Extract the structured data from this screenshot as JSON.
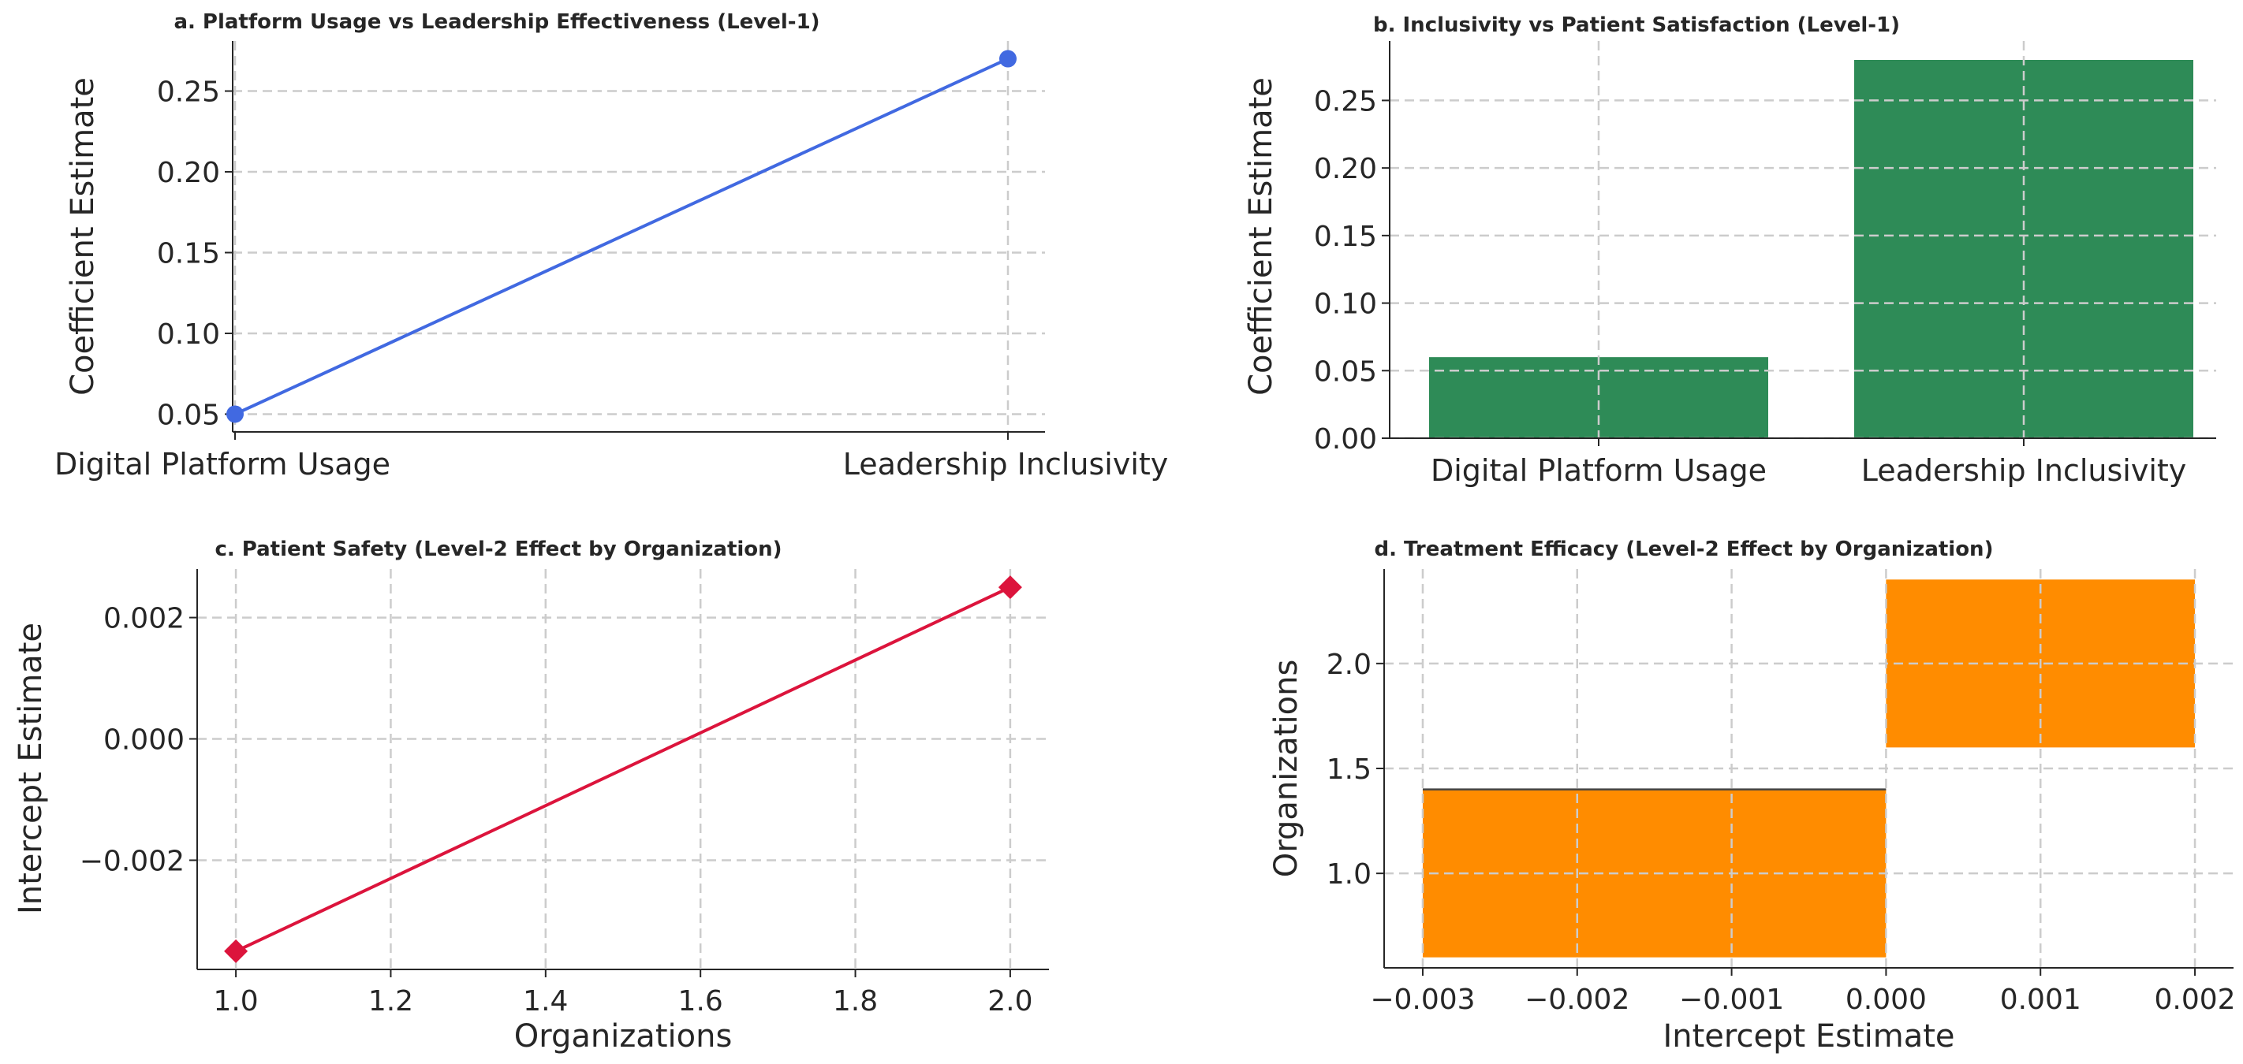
{
  "colors": {
    "line_a": "#4169E1",
    "bar_b": "#2E8B57",
    "line_c": "#DC143C",
    "bar_d": "#FF8C00",
    "grid": "#cccccc",
    "axis": "#262626"
  },
  "chart_data": [
    {
      "type": "line",
      "title": "a. Platform Usage vs Leadership Effectiveness (Level-1)",
      "xlabel": "",
      "ylabel": "Coefficient Estimate",
      "categories": [
        "Digital Platform Usage",
        "Leadership Inclusivity"
      ],
      "values": [
        0.05,
        0.27
      ],
      "ylim": [
        0.039,
        0.281
      ],
      "yticks": [
        0.05,
        0.1,
        0.15,
        0.2,
        0.25
      ],
      "ytick_labels": [
        "0.05",
        "0.10",
        "0.15",
        "0.20",
        "0.25"
      ],
      "marker": "circle",
      "grid": true
    },
    {
      "type": "bar",
      "title": "b. Inclusivity vs Patient Satisfaction (Level-1)",
      "xlabel": "",
      "ylabel": "Coefficient Estimate",
      "categories": [
        "Digital Platform Usage",
        "Leadership Inclusivity"
      ],
      "values": [
        0.06,
        0.28
      ],
      "ylim": [
        0,
        0.294
      ],
      "yticks": [
        0,
        0.05,
        0.1,
        0.15,
        0.2,
        0.25
      ],
      "ytick_labels": [
        "0.00",
        "0.05",
        "0.10",
        "0.15",
        "0.20",
        "0.25"
      ],
      "grid": true
    },
    {
      "type": "line",
      "title": "c. Patient Safety (Level-2 Effect by Organization)",
      "xlabel": "Organizations",
      "ylabel": "Intercept Estimate",
      "x": [
        1.0,
        2.0
      ],
      "values": [
        -0.0035,
        0.0025
      ],
      "xlim": [
        0.95,
        2.05
      ],
      "ylim": [
        -0.0038,
        0.0028
      ],
      "xticks": [
        1.0,
        1.2,
        1.4,
        1.6,
        1.8,
        2.0
      ],
      "xtick_labels": [
        "1.0",
        "1.2",
        "1.4",
        "1.6",
        "1.8",
        "2.0"
      ],
      "yticks": [
        -0.002,
        0.0,
        0.002
      ],
      "ytick_labels": [
        "−0.002",
        "0.000",
        "0.002"
      ],
      "marker": "diamond",
      "grid": true
    },
    {
      "type": "bar",
      "orientation": "horizontal",
      "title": "d. Treatment Efficacy (Level-2 Effect by Organization)",
      "xlabel": "Intercept Estimate",
      "ylabel": "Organizations",
      "y": [
        1.0,
        2.0
      ],
      "values": [
        -0.003,
        0.002
      ],
      "bar_height": 0.8,
      "xlim": [
        -0.00325,
        0.00225
      ],
      "ylim": [
        0.55,
        2.45
      ],
      "xticks": [
        -0.003,
        -0.002,
        -0.001,
        0.0,
        0.001,
        0.002
      ],
      "xtick_labels": [
        "−0.003",
        "−0.002",
        "−0.001",
        "0.000",
        "0.001",
        "0.002"
      ],
      "yticks": [
        1.0,
        1.5,
        2.0
      ],
      "ytick_labels": [
        "1.0",
        "1.5",
        "2.0"
      ],
      "grid": true
    }
  ]
}
